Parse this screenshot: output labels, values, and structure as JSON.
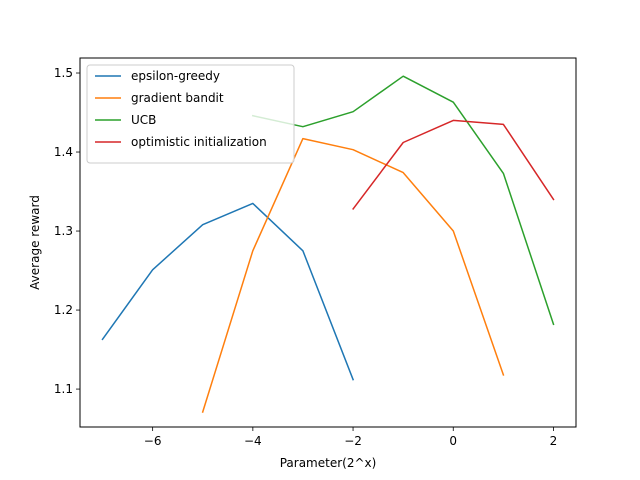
{
  "chart_data": {
    "type": "line",
    "title": "",
    "xlabel": "Parameter(2^x)",
    "ylabel": "Average reward",
    "xlim": [
      -7.45,
      2.45
    ],
    "ylim": [
      1.052,
      1.519
    ],
    "xticks": [
      -6,
      -4,
      -2,
      0,
      2
    ],
    "xtick_labels": [
      "−6",
      "−4",
      "−2",
      "0",
      "2"
    ],
    "yticks": [
      1.1,
      1.2,
      1.3,
      1.4,
      1.5
    ],
    "ytick_labels": [
      "1.1",
      "1.2",
      "1.3",
      "1.4",
      "1.5"
    ],
    "grid": false,
    "legend_position": "upper-left",
    "series": [
      {
        "name": "epsilon-greedy",
        "color": "#1f77b4",
        "x": [
          -7,
          -6,
          -5,
          -4,
          -3,
          -2
        ],
        "y": [
          1.163,
          1.251,
          1.308,
          1.335,
          1.275,
          1.112
        ]
      },
      {
        "name": "gradient bandit",
        "color": "#ff7f0e",
        "x": [
          -5,
          -4,
          -3,
          -2,
          -1,
          0,
          1
        ],
        "y": [
          1.071,
          1.275,
          1.417,
          1.403,
          1.374,
          1.3,
          1.118
        ]
      },
      {
        "name": "UCB",
        "color": "#2ca02c",
        "x": [
          -4,
          -3,
          -2,
          -1,
          0,
          1,
          2
        ],
        "y": [
          1.446,
          1.432,
          1.451,
          1.496,
          1.463,
          1.373,
          1.182
        ]
      },
      {
        "name": "optimistic initialization",
        "color": "#d62728",
        "x": [
          -2,
          -1,
          0,
          1,
          2
        ],
        "y": [
          1.328,
          1.412,
          1.44,
          1.435,
          1.34
        ]
      }
    ]
  }
}
